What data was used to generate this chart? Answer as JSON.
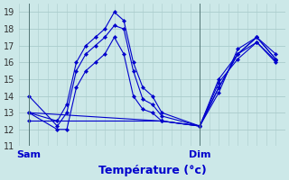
{
  "title": "Température (°c)",
  "bg_color": "#cce8e8",
  "grid_color": "#aacccc",
  "line_color": "#0000cc",
  "x_tick_labels": [
    "Sam",
    "Dim"
  ],
  "x_tick_positions": [
    0,
    36
  ],
  "ylim": [
    11,
    19.5
  ],
  "yticks": [
    11,
    12,
    13,
    14,
    15,
    16,
    17,
    18,
    19
  ],
  "xlim": [
    -2,
    54
  ],
  "vline_positions": [
    0,
    36
  ],
  "series": [
    {
      "x": [
        0,
        6,
        8,
        10,
        12,
        14,
        16,
        18,
        20,
        22,
        24,
        26,
        28,
        36,
        40,
        44,
        48,
        52
      ],
      "y": [
        13.0,
        12.5,
        13.5,
        16.0,
        17.0,
        17.5,
        18.0,
        19.0,
        18.5,
        16.0,
        14.5,
        14.0,
        13.0,
        12.2,
        14.5,
        16.5,
        17.5,
        16.2
      ]
    },
    {
      "x": [
        0,
        6,
        8,
        10,
        12,
        14,
        16,
        18,
        20,
        22,
        24,
        26,
        28,
        36,
        40,
        44,
        48,
        52
      ],
      "y": [
        14.0,
        12.2,
        13.0,
        15.5,
        16.5,
        17.0,
        17.5,
        18.2,
        18.0,
        15.5,
        13.8,
        13.5,
        12.8,
        12.2,
        14.2,
        16.8,
        17.5,
        16.5
      ]
    },
    {
      "x": [
        0,
        28,
        36,
        40,
        44,
        48,
        52
      ],
      "y": [
        13.0,
        12.5,
        12.2,
        14.5,
        16.5,
        17.2,
        16.1
      ]
    },
    {
      "x": [
        0,
        28,
        36,
        40,
        44,
        48,
        52
      ],
      "y": [
        12.5,
        12.5,
        12.2,
        14.8,
        16.2,
        17.2,
        16.0
      ]
    },
    {
      "x": [
        0,
        6,
        8,
        10,
        12,
        14,
        16,
        18,
        20,
        22,
        24,
        26,
        28,
        36,
        40,
        44,
        48,
        52
      ],
      "y": [
        13.0,
        12.0,
        12.0,
        14.5,
        15.5,
        16.0,
        16.5,
        17.5,
        16.5,
        14.0,
        13.2,
        13.0,
        12.5,
        12.2,
        15.0,
        16.5,
        17.5,
        16.2
      ]
    }
  ]
}
